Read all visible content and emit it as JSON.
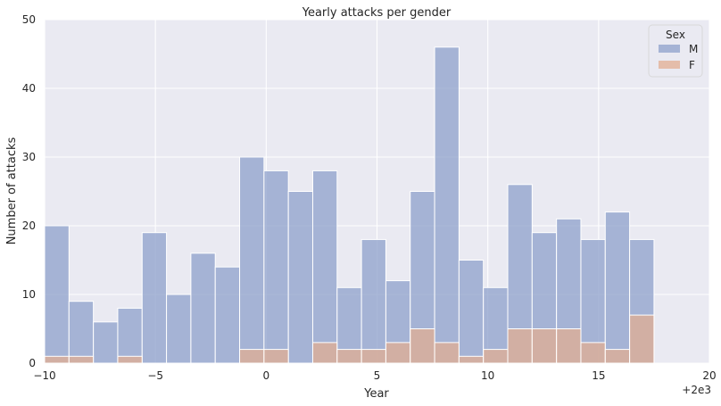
{
  "chart_data": {
    "type": "bar",
    "title": "Yearly attacks per gender",
    "xlabel": "Year",
    "ylabel": "Number of attacks",
    "x_offset_label": "+2e3",
    "xlim": [
      -10,
      20
    ],
    "ylim": [
      0,
      50
    ],
    "xticks": [
      -10,
      -5,
      0,
      5,
      10,
      15,
      20
    ],
    "xtick_labels": [
      "−10",
      "−5",
      "0",
      "5",
      "10",
      "15",
      "20"
    ],
    "yticks": [
      0,
      10,
      20,
      30,
      40,
      50
    ],
    "ytick_labels": [
      "0",
      "10",
      "20",
      "30",
      "40",
      "50"
    ],
    "grid": true,
    "legend": {
      "title": "Sex",
      "position": "top-right"
    },
    "bins": [
      [
        -10,
        -8.9
      ],
      [
        -8.9,
        -7.8
      ],
      [
        -7.8,
        -6.7
      ],
      [
        -6.7,
        -5.6
      ],
      [
        -5.6,
        -4.5
      ],
      [
        -4.5,
        -3.4
      ],
      [
        -3.4,
        -2.3
      ],
      [
        -2.3,
        -1.2
      ],
      [
        -1.2,
        -0.1
      ],
      [
        -0.1,
        1.0
      ],
      [
        1.0,
        2.1
      ],
      [
        2.1,
        3.2
      ],
      [
        3.2,
        4.3
      ],
      [
        4.3,
        5.4
      ],
      [
        5.4,
        6.5
      ],
      [
        6.5,
        7.6
      ],
      [
        7.6,
        8.7
      ],
      [
        8.7,
        9.8
      ],
      [
        9.8,
        10.9
      ],
      [
        10.9,
        12.0
      ],
      [
        12.0,
        13.1
      ],
      [
        13.1,
        14.2
      ],
      [
        14.2,
        15.3
      ],
      [
        15.3,
        16.4
      ],
      [
        16.4,
        17.5
      ]
    ],
    "series": [
      {
        "name": "M",
        "color": "#8da0cb",
        "values": [
          20,
          9,
          6,
          8,
          19,
          10,
          16,
          14,
          30,
          28,
          25,
          28,
          11,
          18,
          12,
          25,
          46,
          15,
          11,
          26,
          19,
          21,
          18,
          22,
          18
        ]
      },
      {
        "name": "F",
        "color": "#e1ad91",
        "values": [
          1,
          1,
          0,
          1,
          0,
          0,
          0,
          0,
          2,
          2,
          0,
          3,
          2,
          2,
          3,
          5,
          3,
          1,
          2,
          5,
          5,
          5,
          3,
          2,
          7
        ]
      }
    ]
  }
}
